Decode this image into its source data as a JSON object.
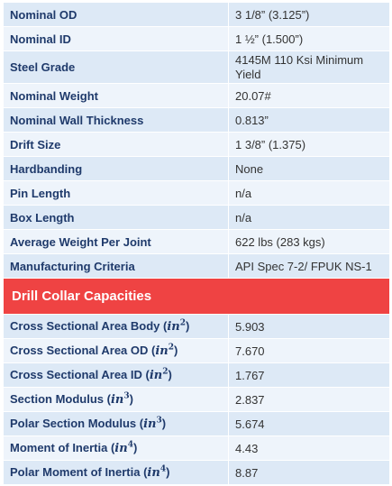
{
  "specs": [
    {
      "label": "Nominal OD",
      "value": "3 1/8” (3.125”)"
    },
    {
      "label": "Nominal ID",
      "value": "1 ½” (1.500”)"
    },
    {
      "label": "Steel Grade",
      "value": "4145M 110 Ksi Minimum Yield"
    },
    {
      "label": "Nominal Weight",
      "value": "20.07#"
    },
    {
      "label": "Nominal Wall Thickness",
      "value": "0.813”"
    },
    {
      "label": "Drift Size",
      "value": "1 3/8” (1.375)"
    },
    {
      "label": "Hardbanding",
      "value": "None"
    },
    {
      "label": "Pin Length",
      "value": "n/a"
    },
    {
      "label": "Box Length",
      "value": "n/a"
    },
    {
      "label": "Average Weight Per Joint",
      "value": "622 lbs (283 kgs)"
    },
    {
      "label": "Manufacturing Criteria",
      "value": "API Spec 7-2/ FPUK NS-1"
    }
  ],
  "capacities": {
    "title": "Drill Collar Capacities",
    "rows": [
      {
        "label": "Cross Sectional Area Body",
        "unit": "in",
        "power": "2",
        "value": "5.903"
      },
      {
        "label": "Cross Sectional Area OD",
        "unit": "in",
        "power": "2",
        "value": "7.670"
      },
      {
        "label": "Cross Sectional Area ID",
        "unit": "in",
        "power": "2",
        "value": "1.767"
      },
      {
        "label": "Section Modulus",
        "unit": "in",
        "power": "3",
        "value": "2.837"
      },
      {
        "label": "Polar Section Modulus",
        "unit": "in",
        "power": "3",
        "value": "5.674"
      },
      {
        "label": "Moment of Inertia",
        "unit": "in",
        "power": "4",
        "value": "4.43"
      },
      {
        "label": "Polar Moment of Inertia",
        "unit": "in",
        "power": "4",
        "value": "8.87"
      }
    ]
  },
  "colors": {
    "row_odd": "#dde9f6",
    "row_even": "#eef4fb",
    "label_text": "#1f3a6b",
    "header_bg": "#ef4343"
  }
}
